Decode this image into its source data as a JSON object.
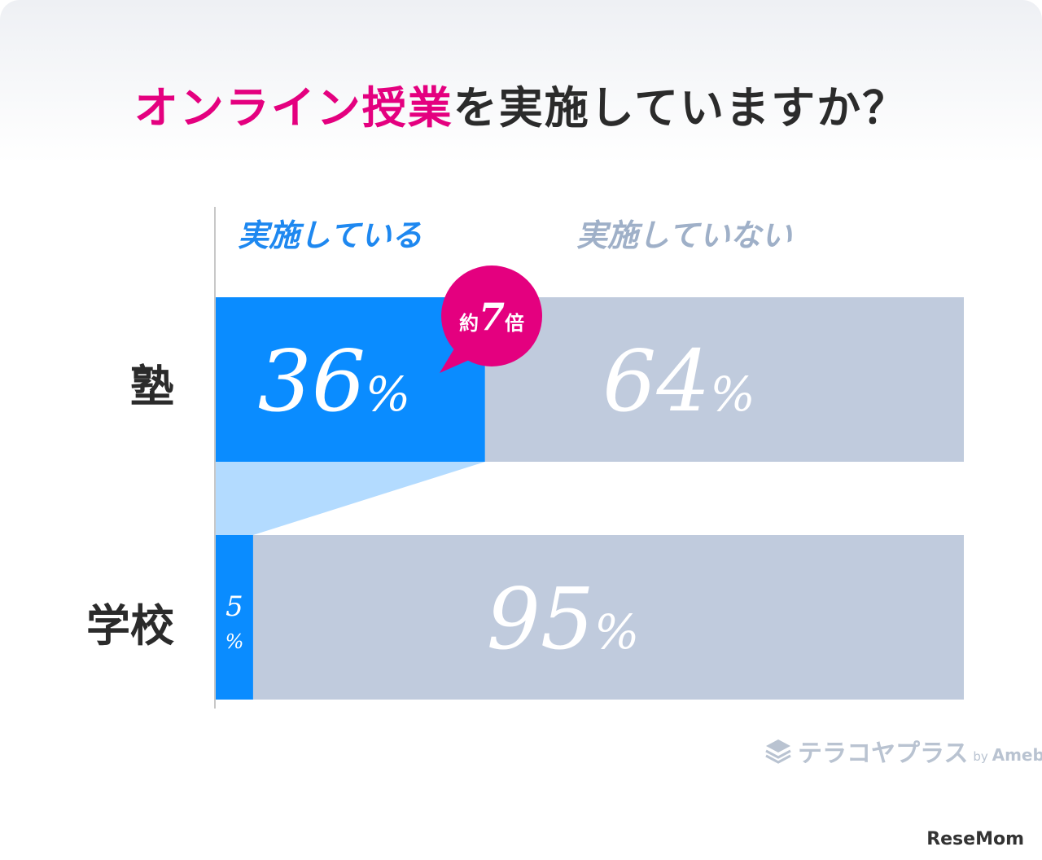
{
  "title": {
    "highlight": "オンライン授業",
    "rest": "を実施していますか？"
  },
  "legend": {
    "yes": "実施している",
    "no": "実施していない"
  },
  "colors": {
    "yes": "#0a8cff",
    "no": "#c0cbdd",
    "connector": "#b3dbff",
    "accent": "#e4007f"
  },
  "chart_data": {
    "type": "bar",
    "orientation": "horizontal",
    "stacked": true,
    "percent": true,
    "categories": [
      "塾",
      "学校"
    ],
    "series": [
      {
        "name": "実施している",
        "values": [
          36,
          5
        ]
      },
      {
        "name": "実施していない",
        "values": [
          64,
          95
        ]
      }
    ],
    "value_labels": [
      [
        "36%",
        "64%"
      ],
      [
        "5%",
        "95%"
      ]
    ],
    "xlim": [
      0,
      100
    ],
    "legend_position": "top",
    "grid": false,
    "annotation": {
      "prefix": "約",
      "number": "7",
      "suffix": "倍"
    }
  },
  "logo": {
    "name": "テラコヤプラス",
    "by": "by",
    "brand": "Ameba"
  },
  "source": "ReseMom"
}
